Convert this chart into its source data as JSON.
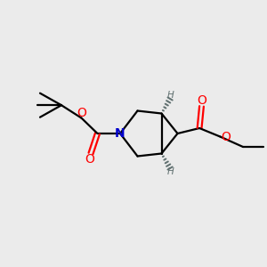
{
  "bg_color": "#ebebeb",
  "bond_color": "#000000",
  "N_color": "#0000cc",
  "O_color": "#ff0000",
  "H_color": "#607070",
  "line_width": 1.6,
  "figsize": [
    3.0,
    3.0
  ],
  "dpi": 100,
  "xlim": [
    0,
    10
  ],
  "ylim": [
    0,
    10
  ]
}
